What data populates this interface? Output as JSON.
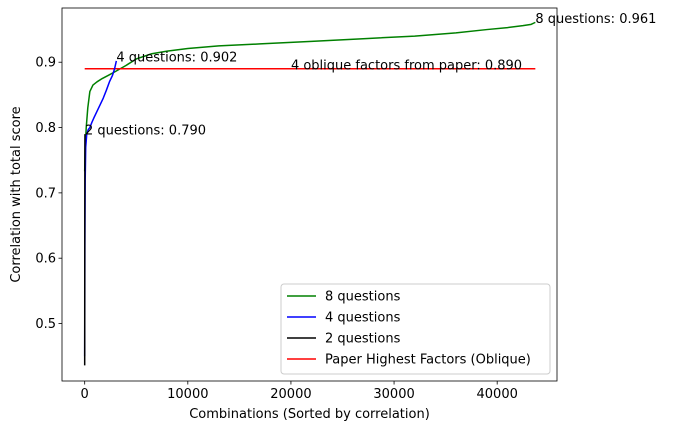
{
  "chart_data": {
    "type": "line",
    "xlabel": "Combinations (Sorted by correlation)",
    "ylabel": "Correlation with total score",
    "xlim": [
      -2200,
      45800
    ],
    "ylim": [
      0.412,
      0.983
    ],
    "xticks": [
      0,
      10000,
      20000,
      30000,
      40000
    ],
    "xtick_labels": [
      "0",
      "10000",
      "20000",
      "30000",
      "40000"
    ],
    "yticks": [
      0.5,
      0.6,
      0.7,
      0.8,
      0.9
    ],
    "ytick_labels": [
      "0.5",
      "0.6",
      "0.7",
      "0.8",
      "0.9"
    ],
    "grid": false,
    "legend_position": "lower-right",
    "series": [
      {
        "name": "8 questions",
        "color": "#008000",
        "x": [
          0,
          50,
          150,
          300,
          500,
          800,
          1200,
          1700,
          2300,
          3000,
          4000,
          5000,
          6500,
          8000,
          10000,
          13000,
          17000,
          22000,
          27000,
          32000,
          36000,
          39000,
          41000,
          42500,
          43300,
          43700
        ],
        "y": [
          0.733,
          0.77,
          0.8,
          0.83,
          0.855,
          0.865,
          0.87,
          0.875,
          0.88,
          0.886,
          0.895,
          0.905,
          0.913,
          0.917,
          0.921,
          0.925,
          0.928,
          0.932,
          0.936,
          0.94,
          0.945,
          0.95,
          0.953,
          0.956,
          0.958,
          0.961
        ]
      },
      {
        "name": "4 questions",
        "color": "#0000ff",
        "x": [
          0,
          20,
          50,
          100,
          200,
          350,
          500,
          700,
          900,
          1200,
          1500,
          1800,
          2100,
          2400,
          2700,
          2900,
          3070
        ],
        "y": [
          0.45,
          0.62,
          0.72,
          0.77,
          0.79,
          0.797,
          0.8,
          0.808,
          0.815,
          0.825,
          0.835,
          0.845,
          0.857,
          0.87,
          0.88,
          0.89,
          0.902
        ]
      },
      {
        "name": "2 questions",
        "color": "#000000",
        "x": [
          0,
          5,
          10,
          15,
          20,
          27
        ],
        "y": [
          0.436,
          0.55,
          0.65,
          0.72,
          0.77,
          0.79
        ]
      },
      {
        "name": "Paper Highest Factors (Oblique)",
        "color": "#ff0000",
        "x": [
          0,
          43700
        ],
        "y": [
          0.89,
          0.89
        ]
      }
    ],
    "annotations": [
      {
        "text": "8 questions: 0.961",
        "x": 43700,
        "y": 0.961
      },
      {
        "text": "4 questions: 0.902",
        "x": 3070,
        "y": 0.902
      },
      {
        "text": "2 questions: 0.790",
        "x": 27,
        "y": 0.79
      },
      {
        "text": "4 oblique factors from paper: 0.890",
        "x": 20000,
        "y": 0.89
      }
    ]
  }
}
